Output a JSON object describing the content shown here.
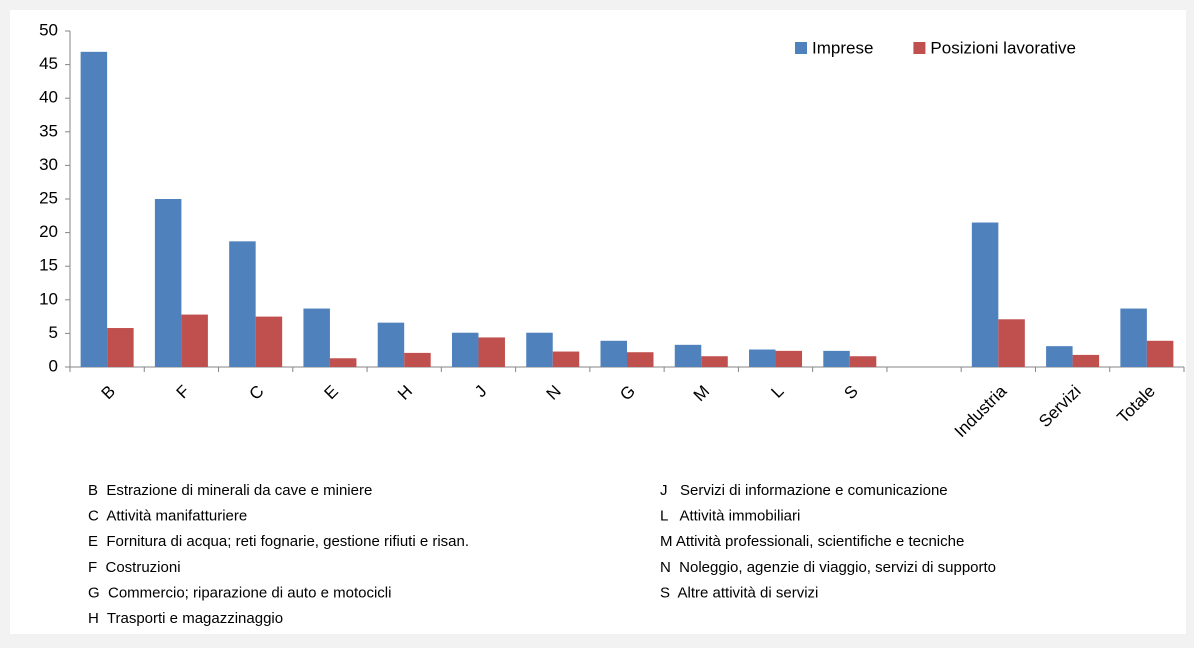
{
  "chart_data": {
    "type": "bar",
    "categories": [
      "B",
      "F",
      "C",
      "E",
      "H",
      "J",
      "N",
      "G",
      "M",
      "L",
      "S",
      null,
      "Industria",
      "Servizi",
      "Totale"
    ],
    "series": [
      {
        "name": "Imprese",
        "color": "#4f81bd",
        "values": [
          46.9,
          25.0,
          18.7,
          8.7,
          6.6,
          5.1,
          5.1,
          3.9,
          3.3,
          2.6,
          2.4,
          null,
          21.5,
          3.1,
          8.7
        ]
      },
      {
        "name": "Posizioni lavorative",
        "color": "#c0504d",
        "values": [
          5.8,
          7.8,
          7.5,
          1.3,
          2.1,
          4.4,
          2.3,
          2.2,
          1.6,
          2.4,
          1.6,
          null,
          7.1,
          1.8,
          3.9
        ]
      }
    ],
    "ylim": [
      0,
      50
    ],
    "yticks": [
      0,
      5,
      10,
      15,
      20,
      25,
      30,
      35,
      40,
      45,
      50
    ],
    "grid": false,
    "legend": "top-right",
    "notes": [
      [
        "B  Estrazione di minerali da cave e miniere",
        "C  Attività manifatturiere",
        "E  Fornitura di acqua; reti fognarie, gestione rifiuti e risan.",
        "F  Costruzioni",
        "G  Commercio; riparazione di auto e motocicli",
        "H  Trasporti e magazzinaggio"
      ],
      [
        "J   Servizi di informazione e comunicazione",
        "L   Attività immobiliari",
        "M Attività professionali, scientifiche e tecniche",
        "N  Noleggio, agenzie di viaggio, servizi di supporto",
        "S  Altre attività di servizi"
      ]
    ]
  }
}
